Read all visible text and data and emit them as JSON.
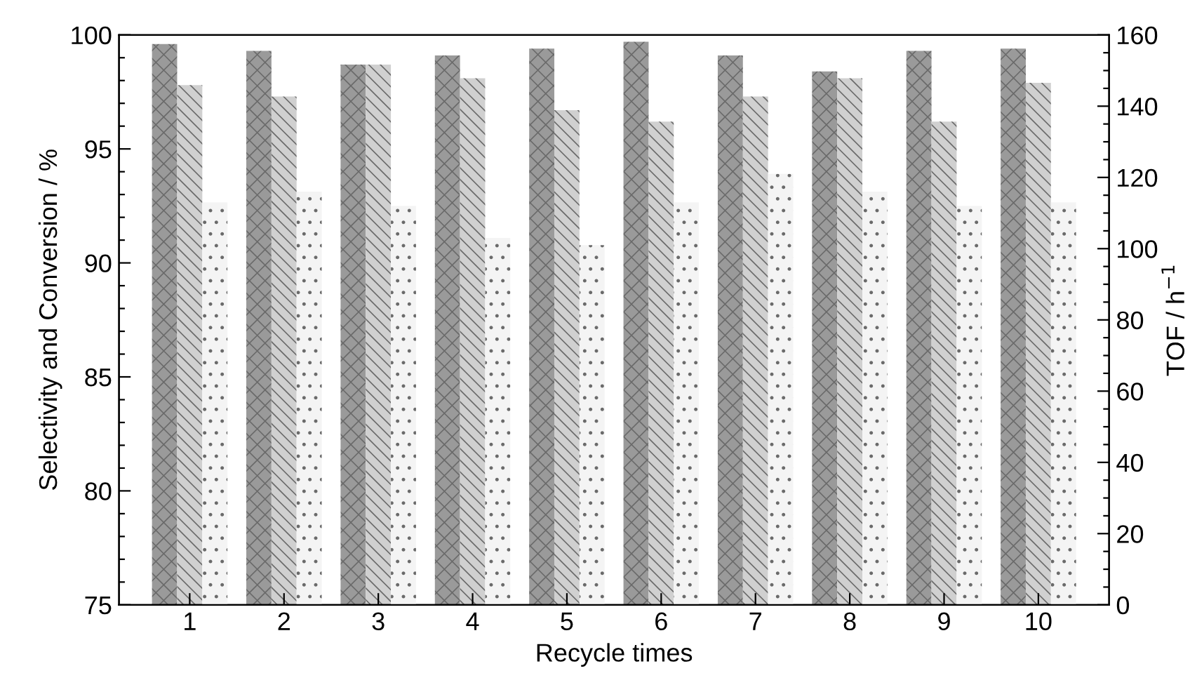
{
  "chart_data": {
    "type": "bar",
    "xlabel": "Recycle times",
    "ylabel": "Selectivity and Conversion / %",
    "y2label": "TOF / h$^{−1}$",
    "categories": [
      "1",
      "2",
      "3",
      "4",
      "5",
      "6",
      "7",
      "8",
      "9",
      "10"
    ],
    "series": [
      {
        "color": "#9a9a9a",
        "values": [
          99.6,
          99.3,
          98.7,
          99.1,
          99.4,
          99.7,
          99.1,
          98.4,
          99.3,
          99.4
        ]
      },
      {
        "color": "#d0d0d0",
        "values": [
          97.8,
          97.3,
          98.7,
          98.1,
          96.7,
          96.2,
          97.3,
          98.1,
          96.2,
          97.9
        ]
      },
      {
        "color": "#f4f4f4",
        "axis": "y2",
        "values": [
          113,
          116,
          112,
          103,
          101,
          113,
          121,
          116,
          112,
          113
        ]
      }
    ],
    "ylim": [
      75,
      100
    ],
    "yticks": [
      75,
      {
        "value": 76,
        "label": null
      },
      {
        "value": 77,
        "label": null
      },
      {
        "value": 78,
        "label": null
      },
      {
        "value": 79,
        "label": null
      },
      80,
      {
        "value": 81,
        "label": null
      },
      {
        "value": 82,
        "label": null
      },
      {
        "value": 83,
        "label": null
      },
      {
        "value": 84,
        "label": null
      },
      85,
      {
        "value": 86,
        "label": null
      },
      {
        "value": 87,
        "label": null
      },
      {
        "value": 88,
        "label": null
      },
      {
        "value": 89,
        "label": null
      },
      90,
      {
        "value": 91,
        "label": null
      },
      {
        "value": 92,
        "label": null
      },
      {
        "value": 93,
        "label": null
      },
      {
        "value": 94,
        "label": null
      },
      95,
      {
        "value": 96,
        "label": null
      },
      {
        "value": 97,
        "label": null
      },
      {
        "value": 98,
        "label": null
      },
      {
        "value": 99,
        "label": null
      },
      100
    ],
    "y2lim": [
      0,
      160
    ],
    "y2ticks": [
      0,
      {
        "value": 5,
        "label": null
      },
      {
        "value": 10,
        "label": null
      },
      {
        "value": 15,
        "label": null
      },
      20,
      {
        "value": 25,
        "label": null
      },
      {
        "value": 30,
        "label": null
      },
      {
        "value": 35,
        "label": null
      },
      40,
      {
        "value": 45,
        "label": null
      },
      {
        "value": 50,
        "label": null
      },
      {
        "value": 55,
        "label": null
      },
      60,
      {
        "value": 65,
        "label": null
      },
      {
        "value": 70,
        "label": null
      },
      {
        "value": 75,
        "label": null
      },
      80,
      {
        "value": 85,
        "label": null
      },
      {
        "value": 90,
        "label": null
      },
      {
        "value": 95,
        "label": null
      },
      100,
      {
        "value": 105,
        "label": null
      },
      {
        "value": 110,
        "label": null
      },
      {
        "value": 115,
        "label": null
      },
      120,
      {
        "value": 125,
        "label": null
      },
      {
        "value": 130,
        "label": null
      },
      {
        "value": 135,
        "label": null
      },
      140,
      {
        "value": 145,
        "label": null
      },
      {
        "value": 150,
        "label": null
      },
      {
        "value": 155,
        "label": null
      },
      160
    ],
    "grid": false,
    "legend": false
  }
}
